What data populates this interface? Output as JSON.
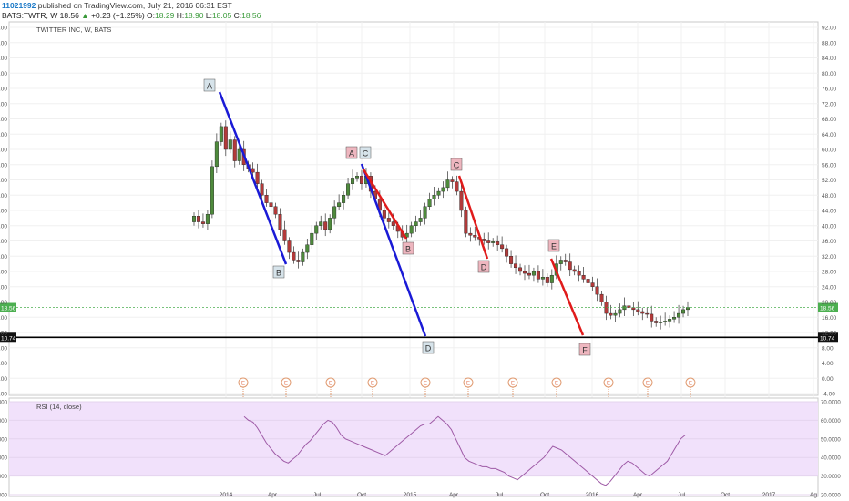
{
  "header": {
    "user": "11021992",
    "published": "published on TradingView.com, July 21, 2016 06:31 EST",
    "symbol": "BATS:TWTR, W",
    "last": "18.56",
    "up_glyph": "▲",
    "change": "+0.23 (+1.25%)",
    "open_label": "O:",
    "open": "18.29",
    "high_label": "H:",
    "high": "18.90",
    "low_label": "L:",
    "low": "18.05",
    "close_label": "C:",
    "close": "18.56"
  },
  "chart_data": {
    "type": "candlestick",
    "title": "TWITTER INC, W, BATS",
    "ylim": [
      -6,
      94
    ],
    "y_ticks": [
      "92.00",
      "88.00",
      "84.00",
      "80.00",
      "76.00",
      "72.00",
      "68.00",
      "64.00",
      "60.00",
      "56.00",
      "52.00",
      "48.00",
      "44.00",
      "40.00",
      "36.00",
      "32.00",
      "28.00",
      "24.00",
      "20.00",
      "16.00",
      "12.00",
      "8.00",
      "4.00",
      "0.00",
      "-4.00"
    ],
    "x_ticks": [
      "2014",
      "Apr",
      "Jul",
      "Oct",
      "2015",
      "Apr",
      "Jul",
      "Oct",
      "2016",
      "Apr",
      "Jul",
      "Oct",
      "2017",
      "Ag"
    ],
    "last_price": 18.56,
    "last_price_label": "18.56",
    "support_level": 10.74,
    "support_label": "10.74",
    "colors": {
      "up": "#4e8a3c",
      "down": "#b23a3a",
      "blue_line": "#1a1ad6",
      "red_line": "#e01b1b",
      "rsi": "#9e5aa6",
      "rsi_band": "#f1e1fb"
    },
    "close_series": [
      42.5,
      41,
      40.5,
      43,
      55.5,
      62,
      66,
      60,
      62.5,
      57,
      60,
      56,
      55,
      54,
      51,
      48,
      46,
      45,
      43,
      39,
      36,
      33,
      31,
      30.5,
      33,
      35,
      38,
      40,
      41,
      39,
      42,
      45,
      46,
      48,
      51,
      52.5,
      53,
      51,
      53,
      49,
      47,
      44,
      42,
      41,
      40,
      38.5,
      37,
      38,
      40,
      41,
      42,
      45,
      47,
      48,
      49,
      50,
      52,
      51.5,
      49,
      44,
      38,
      37.5,
      37,
      36.5,
      36,
      35.5,
      35.8,
      35,
      34,
      32,
      30,
      29,
      28,
      27.5,
      27,
      28,
      26,
      26.5,
      25,
      27,
      30,
      31,
      30.5,
      28.5,
      28,
      27,
      26,
      25,
      24,
      22,
      20,
      17,
      16.5,
      17,
      18,
      19,
      18.5,
      18,
      17.5,
      17,
      16.8,
      15,
      14.5,
      14.8,
      15,
      15.5,
      16,
      17,
      18,
      18.56
    ],
    "candles_x_range": [
      "2013-11",
      "2016-07"
    ],
    "waves": [
      {
        "name": "A-B",
        "from": [
          "A",
          75
        ],
        "to": [
          "B",
          30
        ],
        "color": "blue"
      },
      {
        "name": "C-D",
        "from": [
          "A C",
          57
        ],
        "to": [
          "D",
          11
        ],
        "color": "blue"
      },
      {
        "name": "A-B red",
        "from": [
          "A",
          57
        ],
        "to": [
          "B",
          37
        ],
        "color": "red"
      },
      {
        "name": "C-D red",
        "from": [
          "C",
          52
        ],
        "to": [
          "D",
          32
        ],
        "color": "red"
      },
      {
        "name": "E-F red",
        "from": [
          "E",
          32
        ],
        "to": [
          "F",
          11
        ],
        "color": "red"
      }
    ],
    "wave_labels": [
      "A",
      "B",
      "A",
      "C",
      "B",
      "C",
      "D",
      "D",
      "E",
      "F"
    ],
    "earnings_marker": "E",
    "rsi": {
      "label": "RSI (14, close)",
      "ylim": [
        20,
        70
      ],
      "ticks": [
        "70.0000",
        "60.0000",
        "50.0000",
        "40.0000",
        "30.0000",
        "20.0000"
      ],
      "band": [
        30,
        70
      ],
      "values": [
        62,
        60,
        59,
        56,
        52,
        48,
        45,
        42,
        40,
        38,
        37,
        39,
        41,
        44,
        47,
        49,
        52,
        55,
        58,
        60,
        59,
        56,
        52,
        50,
        49,
        48,
        47,
        46,
        45,
        44,
        43,
        42,
        41,
        43,
        45,
        47,
        49,
        51,
        53,
        55,
        57,
        58,
        58,
        60,
        62,
        60,
        58,
        55,
        50,
        45,
        40,
        38,
        37,
        36,
        35,
        35,
        34,
        34,
        33,
        32,
        30,
        29,
        28,
        30,
        32,
        34,
        36,
        38,
        40,
        43,
        46,
        45,
        44,
        42,
        40,
        38,
        36,
        34,
        32,
        30,
        28,
        26,
        25,
        27,
        30,
        33,
        36,
        38,
        37,
        35,
        33,
        31,
        30,
        32,
        34,
        36,
        38,
        42,
        46,
        50,
        52
      ]
    }
  }
}
